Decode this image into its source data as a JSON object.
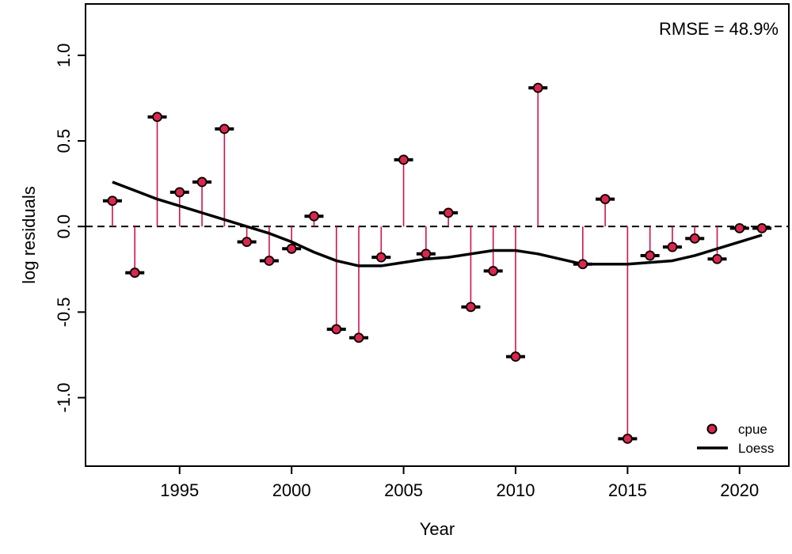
{
  "chart_data": {
    "type": "scatter",
    "title": "",
    "xlabel": "Year",
    "ylabel": "log residuals",
    "annotation": "RMSE = 48.9%",
    "xlim": [
      1990.8,
      2022.2
    ],
    "ylim": [
      -1.4,
      1.3
    ],
    "xticks": [
      1995,
      2000,
      2005,
      2010,
      2015,
      2020
    ],
    "yticks": [
      -1.0,
      -0.5,
      0.0,
      0.5,
      1.0
    ],
    "ytick_labels": [
      "-1.0",
      "-0.5",
      "0.0",
      "0.5",
      "1.0"
    ],
    "reference_line": 0.0,
    "legend_position": "bottom-right",
    "colors": {
      "points": "#E0244B",
      "stems": "#D3124A",
      "loess": "#000000",
      "zero_line": "#000000"
    },
    "series": [
      {
        "name": "cpue",
        "kind": "points",
        "x": [
          1992,
          1993,
          1994,
          1995,
          1996,
          1997,
          1998,
          1999,
          2000,
          2001,
          2002,
          2003,
          2004,
          2005,
          2006,
          2007,
          2008,
          2009,
          2010,
          2011,
          2013,
          2014,
          2015,
          2016,
          2017,
          2018,
          2019,
          2020,
          2021
        ],
        "y": [
          0.15,
          -0.27,
          0.64,
          0.2,
          0.26,
          0.57,
          -0.09,
          -0.2,
          -0.13,
          0.06,
          -0.6,
          -0.65,
          -0.18,
          0.39,
          -0.16,
          0.08,
          -0.47,
          -0.26,
          -0.76,
          0.81,
          -0.22,
          0.16,
          -1.24,
          -0.17,
          -0.12,
          -0.07,
          -0.19,
          -0.01,
          -0.01
        ]
      },
      {
        "name": "Loess",
        "kind": "line",
        "x": [
          1992,
          1993,
          1994,
          1995,
          1996,
          1997,
          1998,
          1999,
          2000,
          2001,
          2002,
          2003,
          2004,
          2005,
          2006,
          2007,
          2008,
          2009,
          2010,
          2011,
          2012,
          2013,
          2014,
          2015,
          2016,
          2017,
          2018,
          2019,
          2020,
          2021
        ],
        "y": [
          0.26,
          0.21,
          0.16,
          0.12,
          0.08,
          0.04,
          0.0,
          -0.04,
          -0.09,
          -0.15,
          -0.2,
          -0.23,
          -0.23,
          -0.21,
          -0.19,
          -0.18,
          -0.16,
          -0.14,
          -0.14,
          -0.16,
          -0.19,
          -0.22,
          -0.22,
          -0.22,
          -0.21,
          -0.2,
          -0.17,
          -0.13,
          -0.09,
          -0.05
        ]
      }
    ]
  }
}
